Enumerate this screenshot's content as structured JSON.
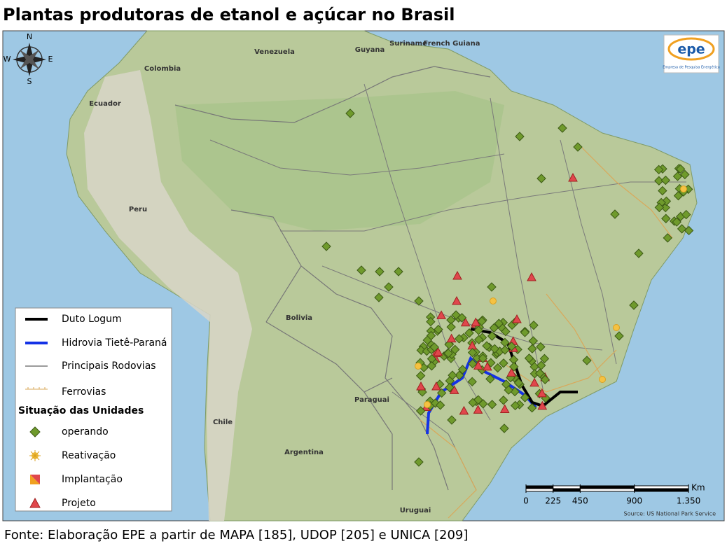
{
  "title": "Plantas produtoras de etanol e açúcar no Brasil",
  "compass": {
    "n": "N",
    "s": "S",
    "e": "E",
    "w": "W"
  },
  "logo": {
    "name": "epe",
    "tagline": "Empresa de Pesquisa Energética"
  },
  "countries": [
    "Venezuela",
    "Guyana",
    "Suriname",
    "French Guiana",
    "Colombia",
    "Ecuador",
    "Peru",
    "Bolivia",
    "Paraguai",
    "Chile",
    "Argentina",
    "Uruguai"
  ],
  "legend": {
    "lines": [
      "Duto Logum",
      "Hidrovia Tietê-Paraná",
      "Principais Rodovias",
      "Ferrovias"
    ],
    "status_title": "Situação das Unidades",
    "status": [
      "operando",
      "Reativação",
      "Implantação",
      "Projeto"
    ]
  },
  "scale": {
    "unit": "Km",
    "ticks": [
      {
        "value": 0,
        "label": "0"
      },
      {
        "value": 225,
        "label": "225"
      },
      {
        "value": 450,
        "label": "450"
      },
      {
        "value": 900,
        "label": "900"
      },
      {
        "value": 1350,
        "label": "1.350"
      }
    ]
  },
  "attribution": "Source: US National Park Service",
  "source": "Fonte: Elaboração EPE a partir de MAPA [185], UDOP [205]  e UNICA [209]"
}
